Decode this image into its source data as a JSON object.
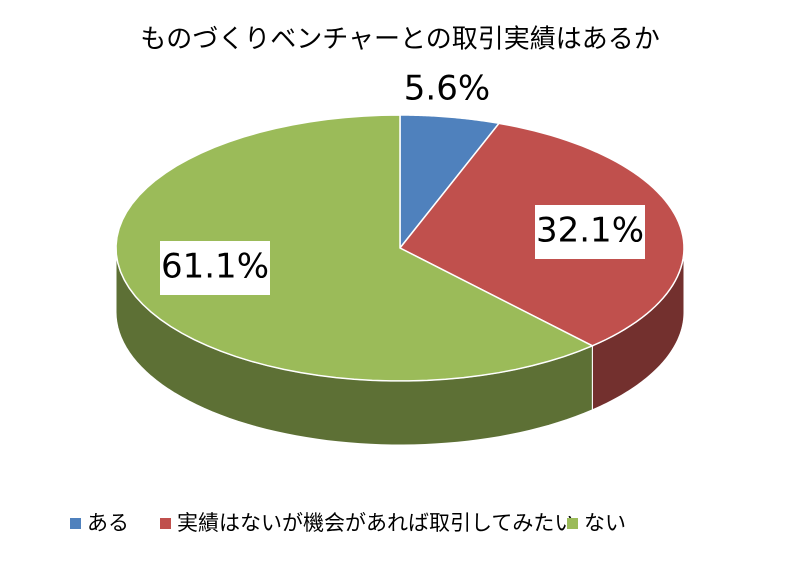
{
  "chart_data": {
    "type": "pie",
    "title": "ものづくりベンチャーとの取引実績はあるか",
    "categories": [
      "ある",
      "実績はないが機会があれば取引してみたい",
      "ない"
    ],
    "values": [
      5.6,
      32.1,
      61.1
    ],
    "value_labels": [
      "5.6%",
      "32.1%",
      "61.1%"
    ],
    "colors": [
      "#4f81bd",
      "#c0504d",
      "#9bbb59"
    ],
    "legend": "bottom"
  }
}
